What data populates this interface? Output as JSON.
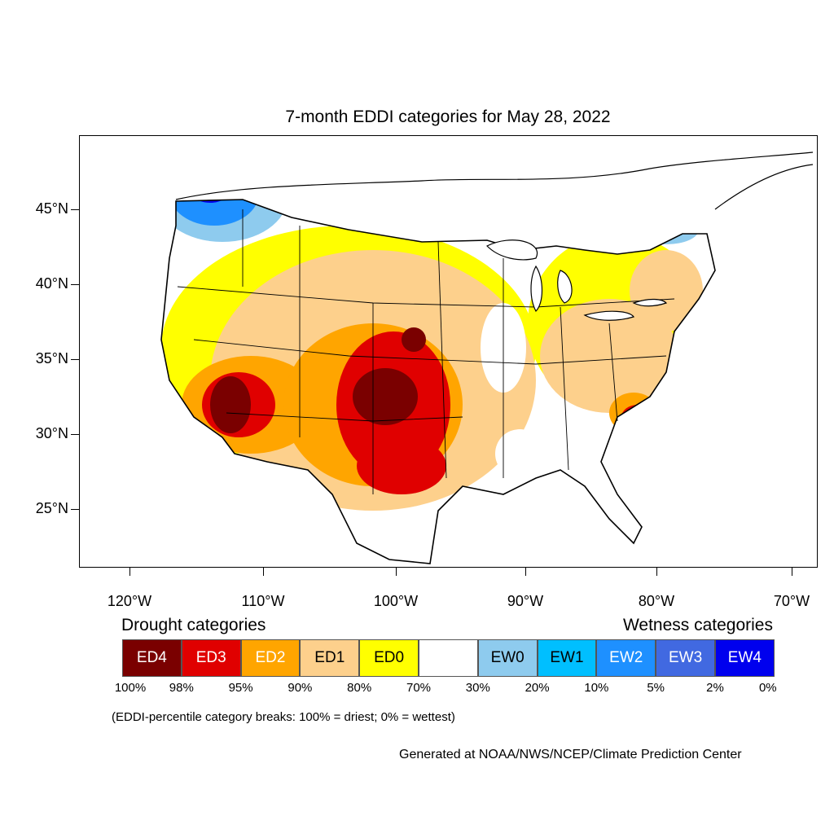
{
  "title": "7-month EDDI categories for May 28, 2022",
  "lat_labels": [
    "45°N",
    "40°N",
    "35°N",
    "30°N",
    "25°N"
  ],
  "lon_labels": [
    "120°W",
    "110°W",
    "100°W",
    "90°W",
    "80°W",
    "70°W"
  ],
  "legend": {
    "drought_heading": "Drought categories",
    "wetness_heading": "Wetness categories",
    "categories": [
      {
        "label": "ED4",
        "color": "#7a0000",
        "text_color": "#ffffff"
      },
      {
        "label": "ED3",
        "color": "#e00000",
        "text_color": "#ffffff"
      },
      {
        "label": "ED2",
        "color": "#ffa500",
        "text_color": "#ffffff"
      },
      {
        "label": "ED1",
        "color": "#fdd08c",
        "text_color": "#000000"
      },
      {
        "label": "ED0",
        "color": "#ffff00",
        "text_color": "#000000"
      },
      {
        "label": "",
        "color": "#ffffff",
        "text_color": "#000000"
      },
      {
        "label": "EW0",
        "color": "#8ecbee",
        "text_color": "#000000"
      },
      {
        "label": "EW1",
        "color": "#00bfff",
        "text_color": "#000000"
      },
      {
        "label": "EW2",
        "color": "#1e90ff",
        "text_color": "#ffffff"
      },
      {
        "label": "EW3",
        "color": "#4169e1",
        "text_color": "#ffffff"
      },
      {
        "label": "EW4",
        "color": "#0000ee",
        "text_color": "#ffffff"
      }
    ],
    "breaks": [
      "100%",
      "98%",
      "95%",
      "90%",
      "80%",
      "70%",
      "30%",
      "20%",
      "10%",
      "5%",
      "2%",
      "0%"
    ]
  },
  "note": "(EDDI-percentile category breaks: 100% = driest; 0% = wettest)",
  "credit": "Generated at NOAA/NWS/NCEP/Climate Prediction Center"
}
